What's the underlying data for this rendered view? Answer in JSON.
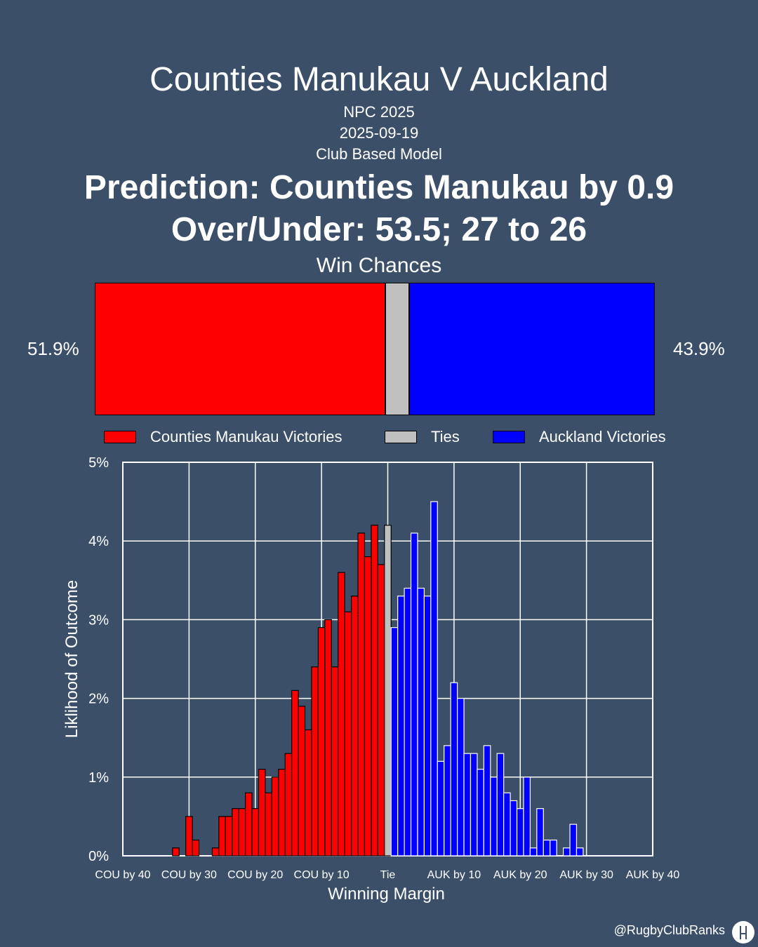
{
  "header": {
    "title": "Counties Manukau V Auckland",
    "competition": "NPC 2025",
    "date": "2025-09-19",
    "model": "Club Based Model",
    "prediction": "Prediction: Counties Manukau by 0.9",
    "over_under": "Over/Under: 53.5; 27 to 26"
  },
  "win_chances": {
    "title": "Win Chances",
    "home_label": "51.9%",
    "away_label": "43.9%",
    "home_pct": 51.9,
    "tie_pct": 4.2,
    "away_pct": 43.9
  },
  "legend": {
    "home": "Counties Manukau Victories",
    "tie": "Ties",
    "away": "Auckland Victories"
  },
  "colors": {
    "home": "#ff0000",
    "tie": "#c0c0c0",
    "away": "#0000ff"
  },
  "chart_data": {
    "type": "bar",
    "xlabel": "Winning Margin",
    "ylabel": "Liklihood of Outcome",
    "ylim": [
      0,
      5
    ],
    "xlim": [
      -40,
      40
    ],
    "yticks": [
      "0%",
      "1%",
      "2%",
      "3%",
      "4%",
      "5%"
    ],
    "xticks": [
      "COU by 40",
      "COU by 30",
      "COU by 20",
      "COU by 10",
      "Tie",
      "AUK by 10",
      "AUK by 20",
      "AUK by 30",
      "AUK by 40"
    ],
    "grid": true,
    "series": [
      {
        "name": "Counties Manukau Victories",
        "x": [
          -32,
          -30,
          -29,
          -26,
          -25,
          -24,
          -23,
          -22,
          -21,
          -20,
          -19,
          -18,
          -17,
          -16,
          -15,
          -14,
          -13,
          -12,
          -11,
          -10,
          -9,
          -8,
          -7,
          -6,
          -5,
          -4,
          -3,
          -2,
          -1
        ],
        "values": [
          0.1,
          0.5,
          0.2,
          0.1,
          0.5,
          0.5,
          0.6,
          0.6,
          0.8,
          0.6,
          1.1,
          0.8,
          1.0,
          1.1,
          1.3,
          2.1,
          1.9,
          1.6,
          2.4,
          2.9,
          3.0,
          2.4,
          3.6,
          3.1,
          3.3,
          4.1,
          3.8,
          4.2,
          3.7
        ]
      },
      {
        "name": "Ties",
        "x": [
          0
        ],
        "values": [
          4.2
        ]
      },
      {
        "name": "Auckland Victories",
        "x": [
          1,
          2,
          3,
          4,
          5,
          6,
          7,
          8,
          9,
          10,
          11,
          12,
          13,
          14,
          15,
          16,
          17,
          18,
          19,
          20,
          21,
          22,
          23,
          24,
          25,
          26,
          27,
          28,
          29,
          30
        ],
        "values": [
          2.9,
          3.3,
          3.4,
          4.1,
          3.4,
          3.3,
          4.5,
          1.2,
          1.4,
          2.2,
          2.0,
          1.3,
          1.3,
          1.1,
          1.4,
          1.0,
          1.3,
          0.8,
          0.7,
          0.6,
          1.0,
          0.1,
          0.6,
          0.2,
          0.2,
          0.0,
          0.1,
          0.4,
          0.1,
          0.0
        ]
      }
    ]
  },
  "footer": {
    "handle": "@RugbyClubRanks"
  }
}
